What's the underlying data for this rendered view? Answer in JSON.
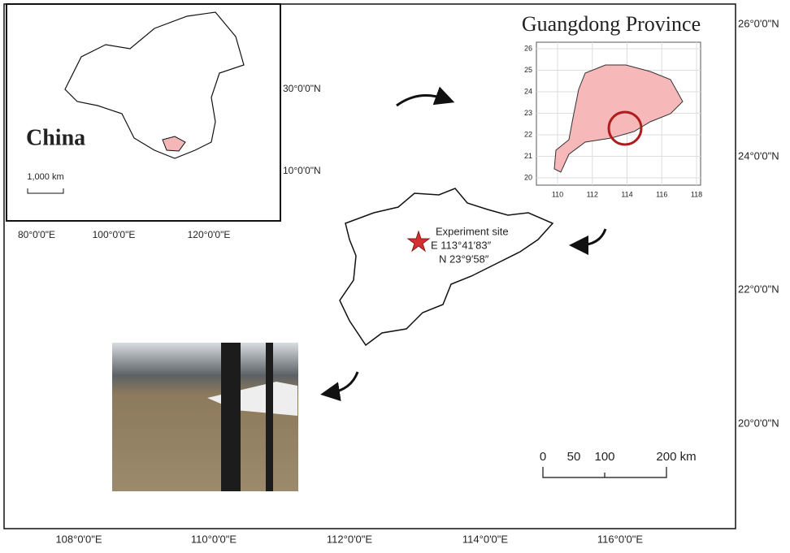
{
  "main_map": {
    "lat_labels": [
      "26°0'0\"N",
      "24°0'0\"N",
      "22°0'0\"N",
      "20°0'0\"N"
    ],
    "lon_labels": [
      "108°0'0\"E",
      "110°0'0\"E",
      "112°0'0\"E",
      "114°0'0\"E",
      "116°0'0\"E"
    ]
  },
  "china_inset": {
    "title": "China",
    "scale_label": "1,000 km",
    "lat_labels": [
      "30°0'0\"N",
      "10°0'0\"N"
    ],
    "lon_labels": [
      "80°0'0\"E",
      "100°0'0\"E",
      "120°0'0\"E"
    ]
  },
  "guangdong_inset": {
    "title": "Guangdong Province",
    "y_ticks": [
      "20",
      "21",
      "22",
      "23",
      "24",
      "25",
      "26"
    ],
    "x_ticks": [
      "110",
      "112",
      "114",
      "116",
      "118"
    ]
  },
  "site": {
    "label": "Experiment site",
    "longitude": "E 113°41′83″",
    "latitude": "N 23°9′58″"
  },
  "scale_bar": {
    "labels": [
      "0",
      "50",
      "100",
      "200 km"
    ]
  }
}
